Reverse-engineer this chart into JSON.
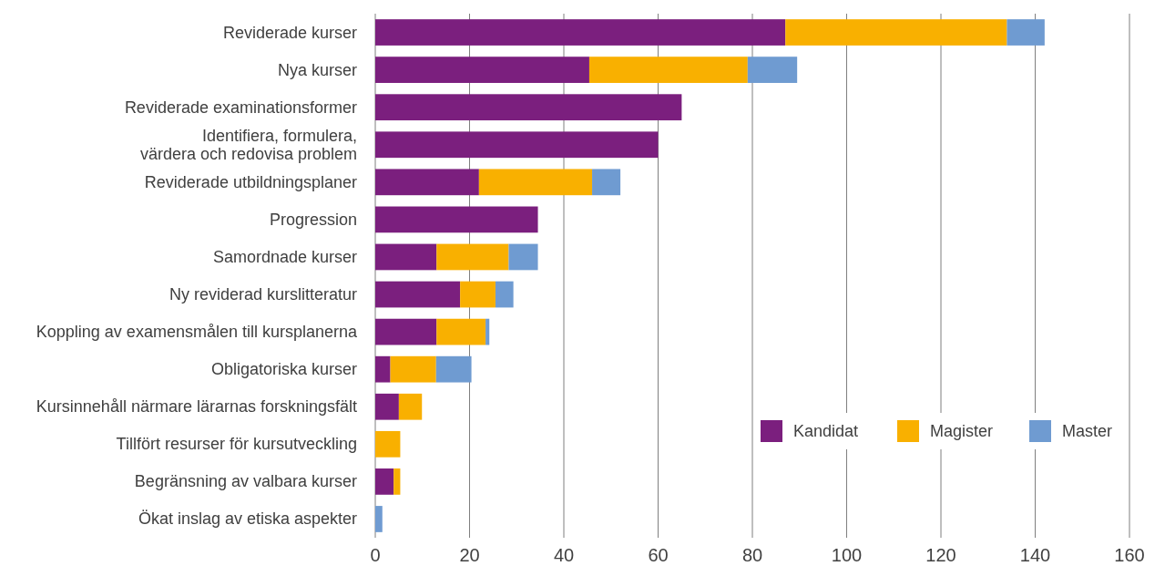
{
  "chart_data": {
    "type": "bar",
    "orientation": "horizontal",
    "stacked": true,
    "grid": "x",
    "legend": "bottom right",
    "categories": [
      "Reviderade kurser",
      "Nya kurser",
      "Reviderade examinationsformer",
      "Identifiera, formulera,\nvärdera och redovisa problem",
      "Reviderade utbildningsplaner",
      "Progression",
      "Samordnade kurser",
      "Ny reviderad kurslitteratur",
      "Koppling av examensmålen till kursplanerna",
      "Obligatoriska kurser",
      "Kursinnehåll närmare lärarnas forskningsfält",
      "Tillfört resurser för kursutveckling",
      "Begränsning av valbara kurser",
      "Ökat inslag av etiska aspekter"
    ],
    "series": [
      {
        "name": "Kandidat",
        "color": "#7b1f7e",
        "values": [
          87,
          45.4,
          65,
          60,
          22,
          34.5,
          13,
          18,
          13,
          3.2,
          5,
          0,
          3.9,
          0
        ]
      },
      {
        "name": "Magister",
        "color": "#f9b000",
        "values": [
          47,
          33.6,
          0,
          0,
          24,
          0,
          15.3,
          7.5,
          10.4,
          9.7,
          4.9,
          5.3,
          1.4,
          0
        ]
      },
      {
        "name": "Master",
        "color": "#6f9bd1",
        "values": [
          8,
          10.5,
          0,
          0,
          6,
          0,
          6.2,
          3.8,
          0.8,
          7.5,
          0,
          0,
          0,
          1.5
        ]
      }
    ],
    "xlim": [
      0,
      160
    ],
    "xticks": [
      0,
      20,
      40,
      60,
      80,
      100,
      120,
      140,
      160
    ]
  }
}
